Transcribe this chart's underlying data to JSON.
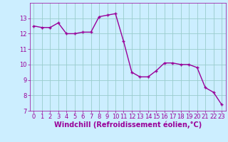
{
  "x": [
    0,
    1,
    2,
    3,
    4,
    5,
    6,
    7,
    8,
    9,
    10,
    11,
    12,
    13,
    14,
    15,
    16,
    17,
    18,
    19,
    20,
    21,
    22,
    23
  ],
  "y": [
    12.5,
    12.4,
    12.4,
    12.7,
    12.0,
    12.0,
    12.1,
    12.1,
    13.1,
    13.2,
    13.3,
    11.5,
    9.5,
    9.2,
    9.2,
    9.6,
    10.1,
    10.1,
    10.0,
    10.0,
    9.8,
    8.5,
    8.2,
    7.4
  ],
  "line_color": "#990099",
  "marker_color": "#990099",
  "bg_color": "#cceeff",
  "grid_color": "#99cccc",
  "xlabel": "Windchill (Refroidissement éolien,°C)",
  "xlabel_color": "#990099",
  "ylim": [
    7,
    14
  ],
  "xlim": [
    -0.5,
    23.5
  ],
  "yticks": [
    7,
    8,
    9,
    10,
    11,
    12,
    13
  ],
  "xticks": [
    0,
    1,
    2,
    3,
    4,
    5,
    6,
    7,
    8,
    9,
    10,
    11,
    12,
    13,
    14,
    15,
    16,
    17,
    18,
    19,
    20,
    21,
    22,
    23
  ],
  "tick_color": "#990099",
  "tick_label_fontsize": 6.0,
  "xlabel_fontsize": 7.0,
  "line_width": 1.0,
  "marker_size": 3.5
}
